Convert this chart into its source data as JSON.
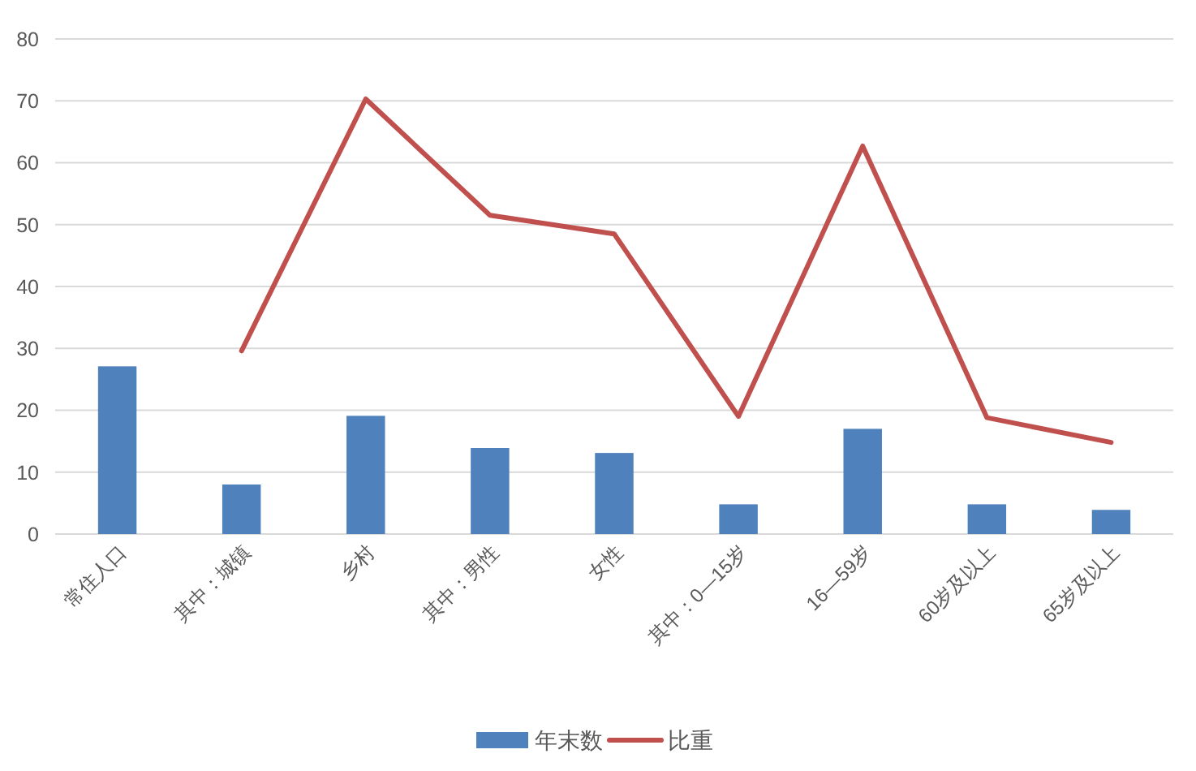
{
  "chart_data": {
    "type": "bar",
    "categories": [
      "常住人口",
      "其中：城镇",
      "乡村",
      "其中：男性",
      "女性",
      "其中：0—15岁",
      "16—59岁",
      "60岁及以上",
      "65岁及以上"
    ],
    "series": [
      {
        "name": "年末数",
        "color": "#4f81bd",
        "values": [
          27.1,
          8.0,
          19.1,
          13.9,
          13.1,
          4.8,
          17.0,
          4.8,
          3.9
        ]
      },
      {
        "name": "比重",
        "type": "line",
        "color": "#c0504d",
        "values": [
          null,
          29.6,
          70.3,
          51.5,
          48.5,
          19.0,
          62.7,
          18.8,
          14.8
        ]
      }
    ],
    "ylim": [
      0,
      80
    ],
    "yticks": [
      0,
      10,
      20,
      30,
      40,
      50,
      60,
      70,
      80
    ],
    "grid": "y",
    "legend": "bottom"
  }
}
